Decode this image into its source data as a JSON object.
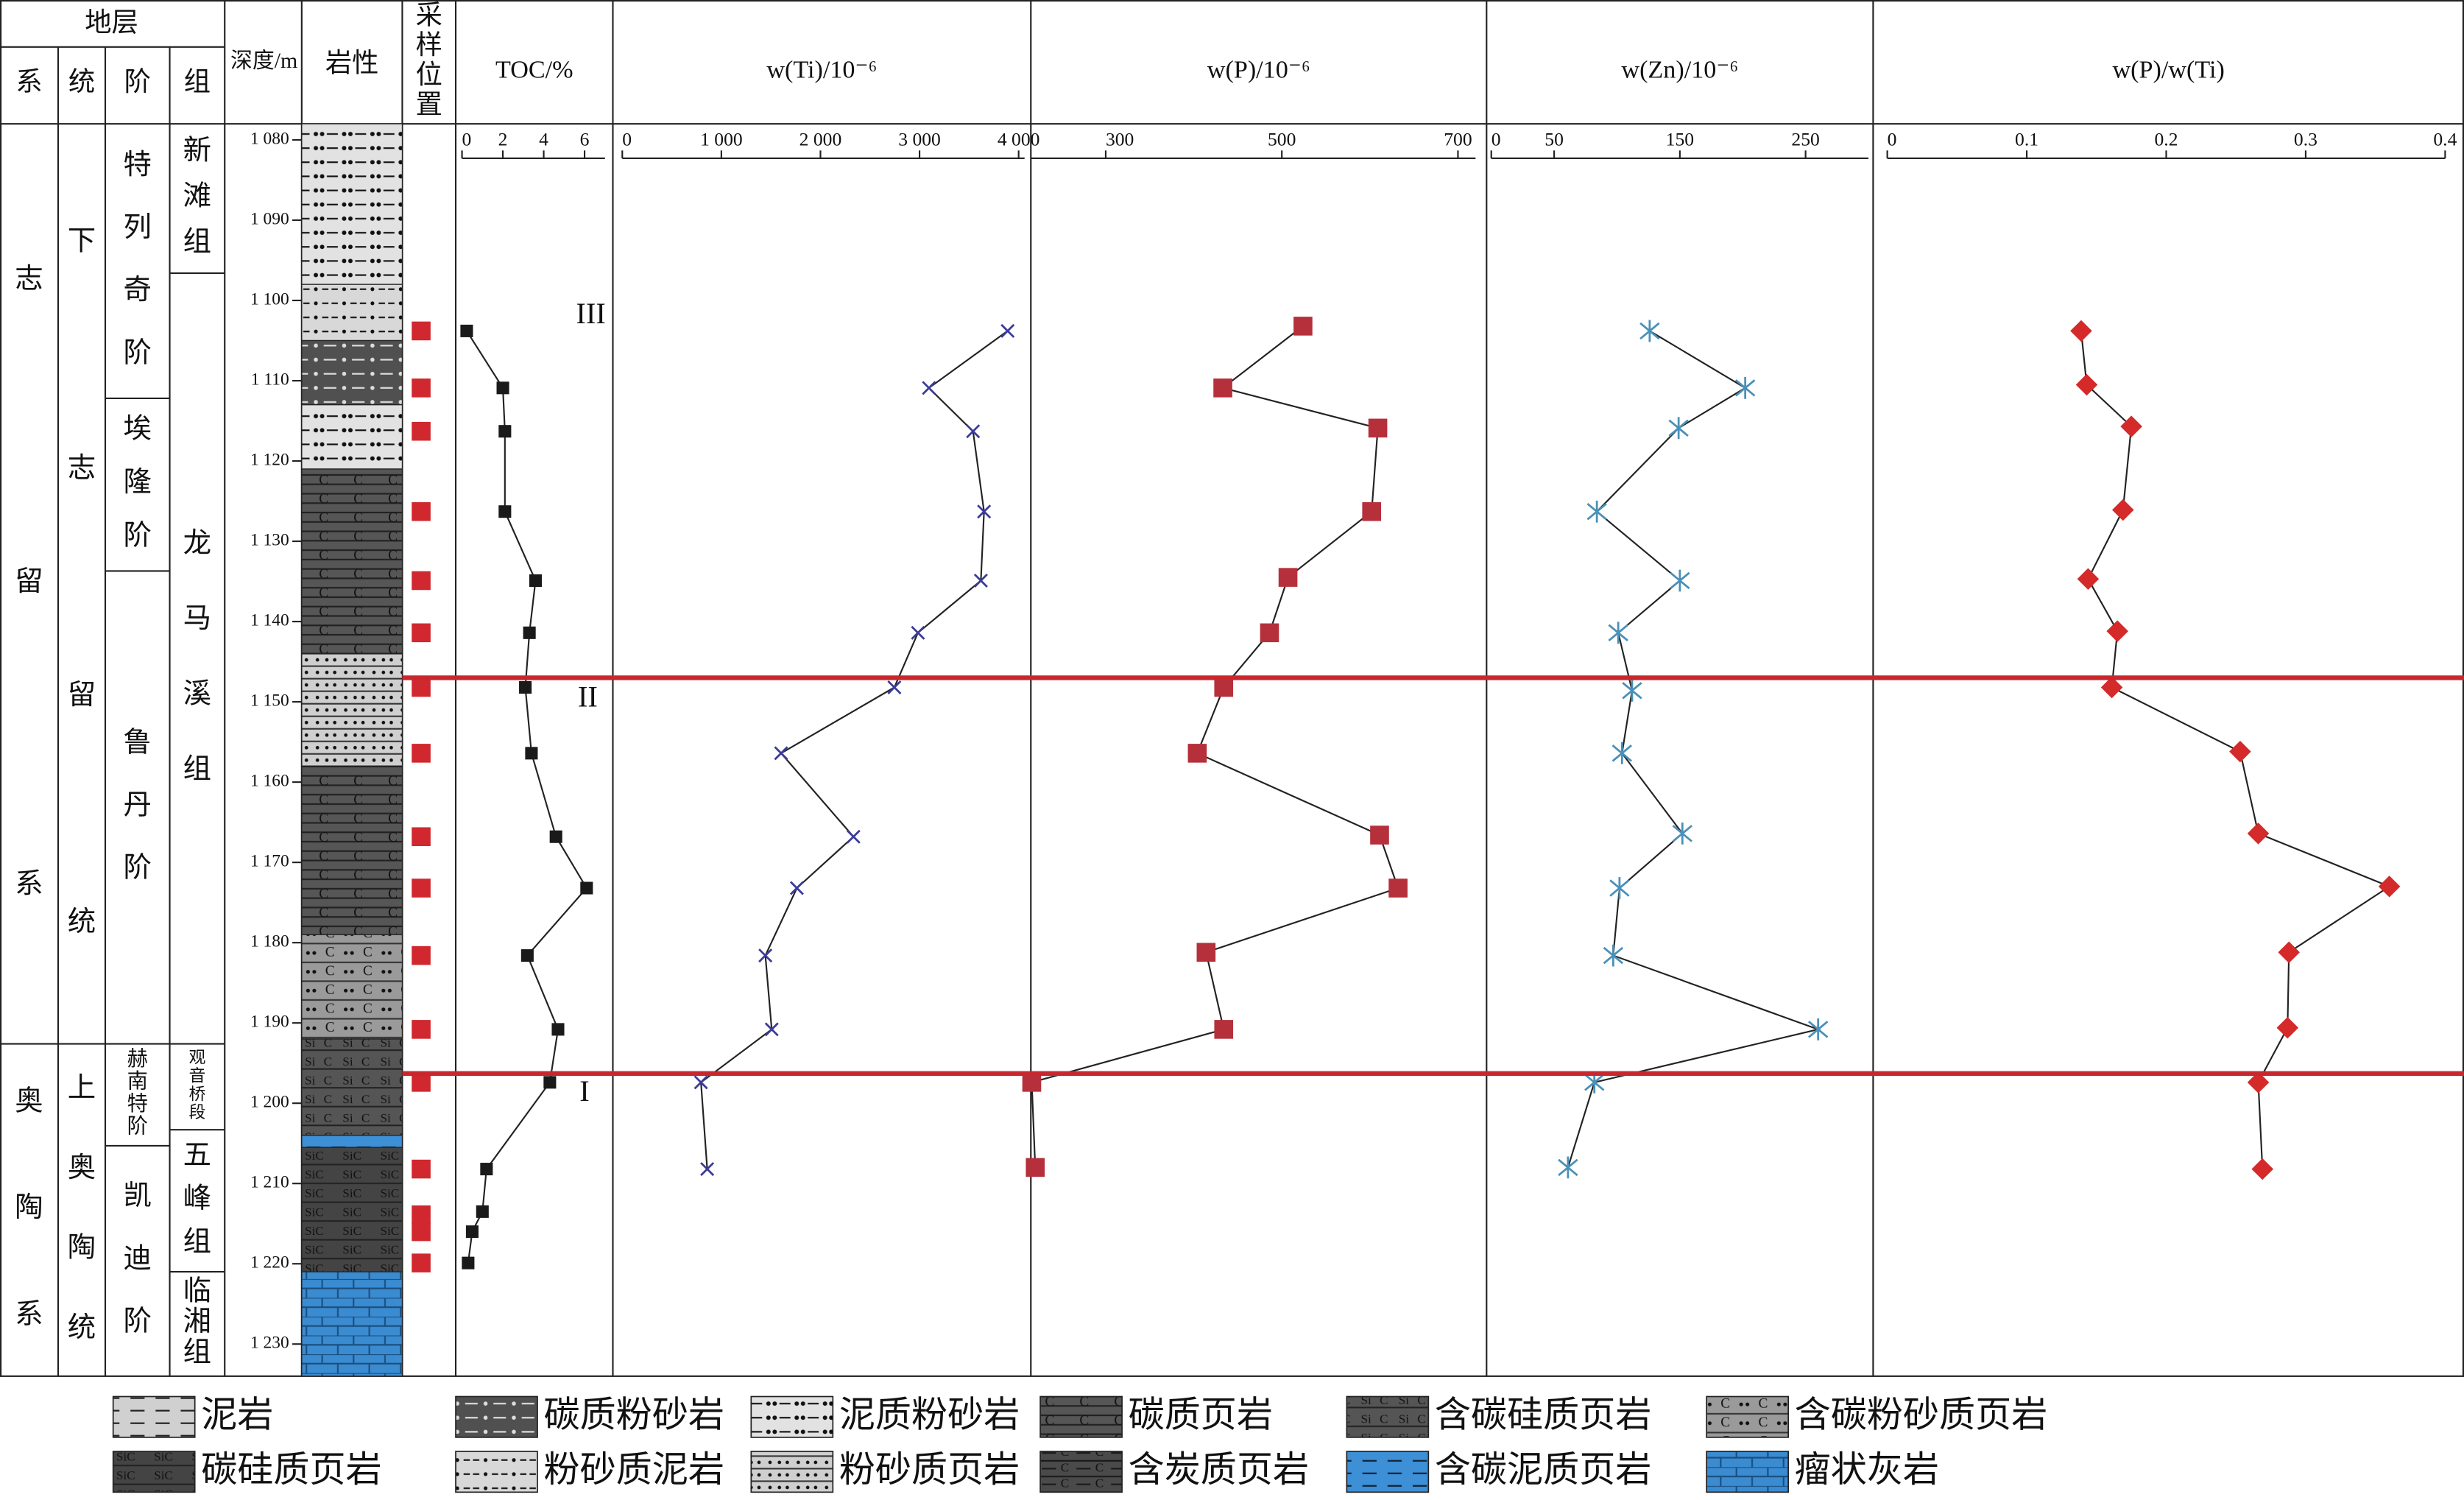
{
  "chart_data": {
    "type": "line",
    "strata_label": "地层",
    "strata_columns": [
      "系",
      "统",
      "阶",
      "组"
    ],
    "depth_label": "深度/m",
    "lithology_label": "岩性",
    "sample_label": "采样位置",
    "ylim": [
      1078,
      1234
    ],
    "yticks": [
      {
        "value": 1080,
        "label": "1 080"
      },
      {
        "value": 1090,
        "label": "1 090"
      },
      {
        "value": 1100,
        "label": "1 100"
      },
      {
        "value": 1110,
        "label": "1 110"
      },
      {
        "value": 1120,
        "label": "1 120"
      },
      {
        "value": 1130,
        "label": "1 130"
      },
      {
        "value": 1140,
        "label": "1 140"
      },
      {
        "value": 1150,
        "label": "1 150"
      },
      {
        "value": 1160,
        "label": "1 160"
      },
      {
        "value": 1170,
        "label": "1 170"
      },
      {
        "value": 1180,
        "label": "1 180"
      },
      {
        "value": 1190,
        "label": "1 190"
      },
      {
        "value": 1200,
        "label": "1 200"
      },
      {
        "value": 1210,
        "label": "1 210"
      },
      {
        "value": 1220,
        "label": "1 220"
      },
      {
        "value": 1230,
        "label": "1 230"
      }
    ],
    "systems": [
      {
        "name": "志留系",
        "top": 1078,
        "bottom": 1192.6
      },
      {
        "name": "奥陶系",
        "top": 1192.6,
        "bottom": 1234
      }
    ],
    "series_units": [
      {
        "name": "下志留统",
        "top": 1078,
        "bottom": 1192.6
      },
      {
        "name": "上奥陶统",
        "top": 1192.6,
        "bottom": 1234
      }
    ],
    "stages": [
      {
        "name": "特列奇阶",
        "top": 1078,
        "bottom": 1112.2
      },
      {
        "name": "埃隆阶",
        "top": 1112.2,
        "bottom": 1133.7
      },
      {
        "name": "鲁丹阶",
        "top": 1133.7,
        "bottom": 1192.6
      },
      {
        "name": "赫南特阶",
        "top": 1192.6,
        "bottom": 1205.3
      },
      {
        "name": "凯迪阶",
        "top": 1205.3,
        "bottom": 1234
      }
    ],
    "formations": [
      {
        "name": "新滩组",
        "top": 1078,
        "bottom": 1096.6
      },
      {
        "name": "龙马溪组",
        "top": 1096.6,
        "bottom": 1192.6
      },
      {
        "name": "观音桥段",
        "top": 1192.6,
        "bottom": 1203.3
      },
      {
        "name": "五峰组",
        "top": 1203.3,
        "bottom": 1221
      },
      {
        "name": "临湘组",
        "top": 1221,
        "bottom": 1234
      }
    ],
    "lithology": [
      {
        "top": 1078,
        "bottom": 1098,
        "rock": "泥质粉砂岩"
      },
      {
        "top": 1098,
        "bottom": 1105,
        "rock": "粉砂质泥岩"
      },
      {
        "top": 1105,
        "bottom": 1113,
        "rock": "碳质粉砂岩"
      },
      {
        "top": 1113,
        "bottom": 1121,
        "rock": "泥质粉砂岩"
      },
      {
        "top": 1121,
        "bottom": 1144,
        "rock": "碳质页岩"
      },
      {
        "top": 1144,
        "bottom": 1158,
        "rock": "粉砂质页岩"
      },
      {
        "top": 1158,
        "bottom": 1179,
        "rock": "碳质页岩"
      },
      {
        "top": 1179,
        "bottom": 1192,
        "rock": "含碳粉砂质页岩"
      },
      {
        "top": 1192,
        "bottom": 1204,
        "rock": "含碳硅质页岩"
      },
      {
        "top": 1204,
        "bottom": 1205.5,
        "rock": "含碳泥质页岩"
      },
      {
        "top": 1205.5,
        "bottom": 1221,
        "rock": "碳硅质页岩"
      },
      {
        "top": 1221,
        "bottom": 1234,
        "rock": "瘤状灰岩"
      }
    ],
    "samples": [
      1103.8,
      1110.9,
      1116.3,
      1126.3,
      1134.9,
      1141.4,
      1148.2,
      1156.4,
      1166.8,
      1173.2,
      1181.6,
      1190.8,
      1197.4,
      1208.2,
      1213.9,
      1216.0,
      1219.9
    ],
    "series": [
      {
        "name": "TOC/%",
        "color": "#1a1a1a",
        "marker": "square",
        "xlim": [
          0,
          7
        ],
        "xticks": [
          0,
          2,
          4,
          6
        ],
        "depth": [
          1103.8,
          1110.9,
          1116.3,
          1126.3,
          1134.9,
          1141.4,
          1148.2,
          1156.4,
          1166.8,
          1173.2,
          1181.6,
          1190.8,
          1197.4,
          1208.2,
          1213.5,
          1216.0,
          1219.9
        ],
        "values": [
          0.23,
          2.0,
          2.1,
          2.1,
          3.6,
          3.3,
          3.1,
          3.4,
          4.6,
          6.1,
          3.2,
          4.7,
          4.3,
          1.2,
          1.0,
          0.5,
          0.3
        ]
      },
      {
        "name": "w(Ti)/10⁻⁶",
        "color": "#3b3b9a",
        "marker": "cross",
        "xlim": [
          0,
          4060
        ],
        "xticks": [
          0,
          {
            "value": 1000,
            "label": "1 000"
          },
          {
            "value": 2000,
            "label": "2 000"
          },
          {
            "value": 3000,
            "label": "3 000"
          },
          {
            "value": 4000,
            "label": "4 000"
          }
        ],
        "depth": [
          1103.8,
          1110.9,
          1116.3,
          1126.3,
          1134.9,
          1141.4,
          1148.2,
          1156.4,
          1166.8,
          1173.2,
          1181.6,
          1190.8,
          1197.4,
          1208.2
        ],
        "values": [
          3889,
          3095,
          3540,
          3651,
          3619,
          2984,
          2746,
          1603,
          2333,
          1762,
          1444,
          1508,
          794,
          857
        ]
      },
      {
        "name": "w(P)/10⁻⁶",
        "color": "#b5303a",
        "marker": "square",
        "xlim": [
          215,
          720
        ],
        "xticks": [
          300,
          500,
          700
        ],
        "depth": [
          1103.2,
          1110.9,
          1115.9,
          1126.3,
          1134.5,
          1141.4,
          1148.2,
          1156.4,
          1166.6,
          1173.2,
          1181.2,
          1190.8,
          1197.4,
          1208.0
        ],
        "values": [
          524,
          433,
          609,
          602,
          507,
          486,
          434,
          404,
          611,
          632,
          414,
          434,
          216,
          220
        ]
      },
      {
        "name": "w(Zn)/10⁻⁶",
        "color": "#4a90b8",
        "marker": "star",
        "xlim": [
          0,
          300
        ],
        "xticks": [
          0,
          50,
          150,
          250
        ],
        "depth": [
          1103.8,
          1110.9,
          1115.9,
          1126.3,
          1134.9,
          1141.4,
          1148.6,
          1156.4,
          1166.4,
          1173.2,
          1181.6,
          1190.8,
          1197.4,
          1208.0
        ],
        "values": [
          126,
          202,
          149,
          84,
          150,
          101,
          112,
          104,
          152,
          102,
          97,
          260,
          82,
          61
        ]
      },
      {
        "name": "w(P)/w(Ti)",
        "color": "#d42a2a",
        "marker": "diamond",
        "xlim": [
          0,
          0.4
        ],
        "xticks": [
          0,
          0.1,
          0.2,
          0.3,
          0.4
        ],
        "depth": [
          1103.8,
          1110.5,
          1115.7,
          1126.1,
          1134.7,
          1141.2,
          1148.2,
          1156.2,
          1166.4,
          1173.0,
          1181.2,
          1190.6,
          1197.4,
          1208.2
        ],
        "values": [
          0.139,
          0.143,
          0.175,
          0.169,
          0.144,
          0.165,
          0.161,
          0.253,
          0.266,
          0.36,
          0.288,
          0.287,
          0.266,
          0.269
        ]
      }
    ],
    "boundaries": [
      1147.0,
      1196.3
    ],
    "boundary_color": "#c8282d",
    "annotations": [
      "III",
      "II",
      "I"
    ],
    "legend": [
      "泥岩",
      "碳质粉砂岩",
      "泥质粉砂岩",
      "碳质页岩",
      "含碳硅质页岩",
      "含碳粉砂质页岩",
      "碳硅质页岩",
      "粉砂质泥岩",
      "粉砂质页岩",
      "含炭质页岩",
      "含碳泥质页岩",
      "瘤状灰岩"
    ]
  }
}
